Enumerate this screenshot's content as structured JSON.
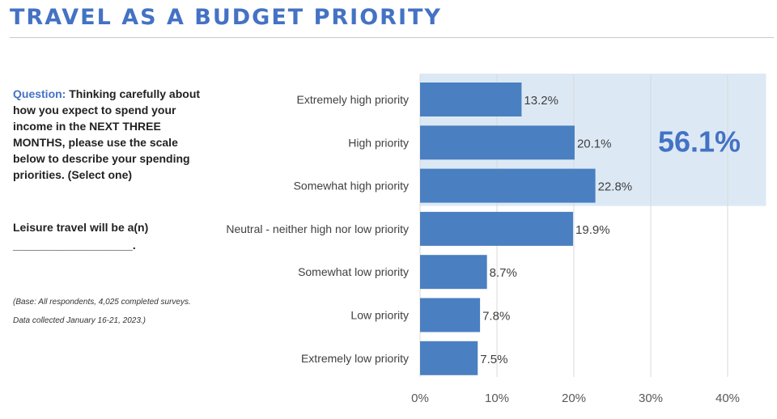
{
  "page": {
    "title": "TRAVEL AS A BUDGET PRIORITY",
    "question_label": "Question:",
    "question_text": "Thinking carefully about how you expect to spend your income in the NEXT THREE MONTHS, please use the scale below to describe your spending priorities. (Select one)",
    "leisure_line1": "Leisure travel will be a(n)",
    "leisure_line2": "___________________.",
    "base_line1": "(Base: All respondents, 4,025 completed surveys.",
    "base_line2": "Data collected January 16-21, 2023.)",
    "highlight_value": "56.1%"
  },
  "chart_data": {
    "type": "bar",
    "orientation": "horizontal",
    "categories": [
      "Extremely high priority",
      "High priority",
      "Somewhat high priority",
      "Neutral - neither high nor low priority",
      "Somewhat low priority",
      "Low priority",
      "Extremely low priority"
    ],
    "values": [
      13.2,
      20.1,
      22.8,
      19.9,
      8.7,
      7.8,
      7.5
    ],
    "value_labels": [
      "13.2%",
      "20.1%",
      "22.8%",
      "19.9%",
      "8.7%",
      "7.8%",
      "7.5%"
    ],
    "xlim": [
      0,
      45
    ],
    "xticks": [
      0,
      10,
      20,
      30,
      40
    ],
    "xtick_labels": [
      "0%",
      "10%",
      "20%",
      "30%",
      "40%"
    ],
    "grid": true,
    "highlight": {
      "label": "56.1%",
      "categories_covered": [
        0,
        1,
        2
      ]
    },
    "colors": {
      "bar": "#4a7fc1",
      "highlight": "#dce9f5",
      "grid": "#d9d9d9",
      "title": "#4472c4",
      "highlight_text": "#4472c4"
    }
  }
}
